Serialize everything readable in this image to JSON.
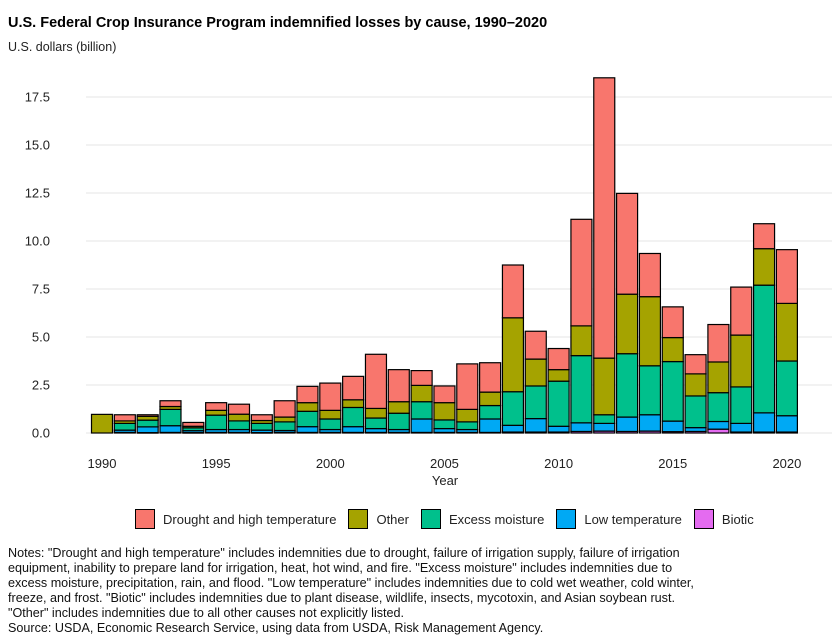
{
  "header": {
    "title": "U.S. Federal Crop Insurance Program indemnified losses by cause, 1990–2020",
    "subtitle": "U.S. dollars (billion)"
  },
  "chart_data": {
    "type": "bar",
    "stacked": true,
    "title": "U.S. Federal Crop Insurance Program indemnified losses by cause, 1990–2020",
    "xlabel": "Year",
    "ylabel": "U.S. dollars (billion)",
    "ylim": [
      0,
      19
    ],
    "y_ticks": [
      "0.0",
      "2.5",
      "5.0",
      "7.5",
      "10.0",
      "12.5",
      "15.0",
      "17.5"
    ],
    "y_tick_values": [
      0,
      2.5,
      5,
      7.5,
      10,
      12.5,
      15,
      17.5
    ],
    "x_ticks": [
      "1990",
      "1995",
      "2000",
      "2005",
      "2010",
      "2015",
      "2020"
    ],
    "categories": [
      1990,
      1991,
      1992,
      1993,
      1994,
      1995,
      1996,
      1997,
      1998,
      1999,
      2000,
      2001,
      2002,
      2003,
      2004,
      2005,
      2006,
      2007,
      2008,
      2009,
      2010,
      2011,
      2012,
      2013,
      2014,
      2015,
      2016,
      2017,
      2018,
      2019,
      2020
    ],
    "grid": "horizontal",
    "legend_position": "bottom",
    "series": [
      {
        "name": "Biotic",
        "color": "#e46bf0",
        "values": [
          0,
          0.03,
          0.02,
          0.03,
          0.02,
          0.03,
          0.03,
          0.02,
          0.03,
          0.03,
          0.03,
          0.03,
          0.03,
          0.03,
          0.03,
          0.03,
          0.03,
          0.03,
          0.05,
          0.05,
          0.05,
          0.08,
          0.1,
          0.08,
          0.1,
          0.07,
          0.08,
          0.2,
          0.05,
          0.05,
          0.05
        ]
      },
      {
        "name": "Low temperature",
        "color": "#00a9f4",
        "values": [
          0,
          0.12,
          0.3,
          0.35,
          0.1,
          0.15,
          0.15,
          0.13,
          0.1,
          0.3,
          0.15,
          0.3,
          0.2,
          0.15,
          0.7,
          0.2,
          0.15,
          0.7,
          0.35,
          0.7,
          0.3,
          0.45,
          0.4,
          0.75,
          0.85,
          0.55,
          0.2,
          0.4,
          0.45,
          1.0,
          0.85
        ]
      },
      {
        "name": "Excess moisture",
        "color": "#00c08c",
        "values": [
          0,
          0.35,
          0.35,
          0.85,
          0.15,
          0.75,
          0.45,
          0.35,
          0.45,
          0.8,
          0.55,
          1.0,
          0.55,
          0.85,
          0.9,
          0.45,
          0.4,
          0.7,
          1.75,
          1.7,
          2.35,
          3.5,
          0.45,
          3.3,
          2.55,
          3.1,
          1.65,
          1.5,
          1.9,
          6.65,
          2.85
        ]
      },
      {
        "name": "Other",
        "color": "#a5a300",
        "values": [
          0.97,
          0.13,
          0.2,
          0.15,
          0.08,
          0.25,
          0.35,
          0.15,
          0.25,
          0.45,
          0.45,
          0.4,
          0.5,
          0.6,
          0.85,
          0.9,
          0.65,
          0.7,
          3.85,
          1.4,
          0.6,
          1.55,
          2.95,
          3.1,
          3.6,
          1.25,
          1.15,
          1.6,
          2.7,
          1.9,
          3.0
        ]
      },
      {
        "name": "Drought and high temperature",
        "color": "#f8766d",
        "values": [
          0,
          0.32,
          0.08,
          0.3,
          0.2,
          0.4,
          0.52,
          0.3,
          0.85,
          0.85,
          1.42,
          1.22,
          2.82,
          1.67,
          0.77,
          0.87,
          2.37,
          1.53,
          2.75,
          1.45,
          1.1,
          5.55,
          14.6,
          5.25,
          2.25,
          1.6,
          1.0,
          1.95,
          2.5,
          1.3,
          2.8
        ]
      }
    ]
  },
  "legend": {
    "items": [
      {
        "label": "Drought and high temperature",
        "color": "#f8766d"
      },
      {
        "label": "Other",
        "color": "#a5a300"
      },
      {
        "label": "Excess moisture",
        "color": "#00c08c"
      },
      {
        "label": "Low temperature",
        "color": "#00a9f4"
      },
      {
        "label": "Biotic",
        "color": "#e46bf0"
      }
    ]
  },
  "notes": {
    "lines": [
      "Notes: \"Drought and high temperature\" includes indemnities due to drought, failure of irrigation supply, failure of irrigation",
      "equipment, inability to prepare land for irrigation, heat, hot wind, and fire. \"Excess moisture\" includes indemnities due to",
      "excess moisture, precipitation, rain, and flood. \"Low temperature\" includes indemnities due to cold wet weather, cold winter,",
      "freeze, and frost. \"Biotic\" includes indemnities due to plant disease, wildlife, insects, mycotoxin, and Asian soybean rust.",
      "\"Other\" includes indemnities due to all other causes not explicitly listed."
    ],
    "source": "Source: USDA, Economic Research Service, using data from USDA, Risk Management Agency."
  }
}
